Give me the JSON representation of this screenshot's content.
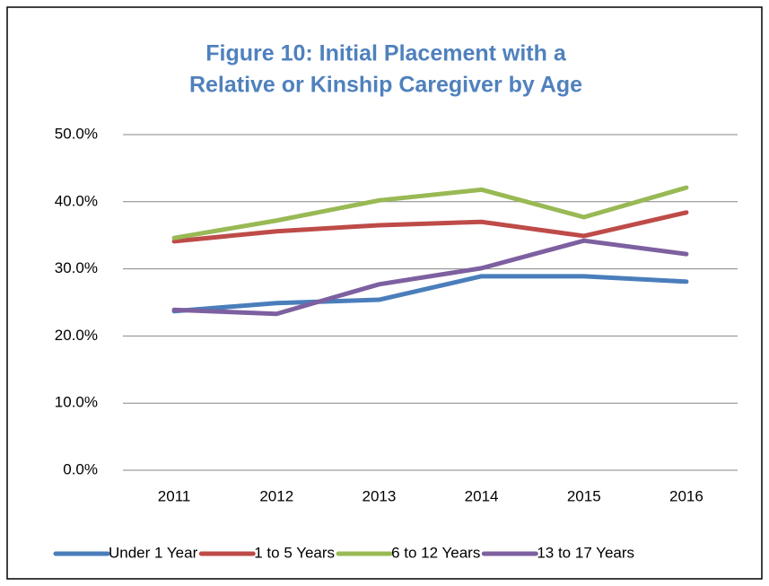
{
  "chart_data": {
    "type": "line",
    "title": [
      "Figure 10: Initial Placement with a",
      "Relative or Kinship Caregiver by Age"
    ],
    "categories": [
      "2011",
      "2012",
      "2013",
      "2014",
      "2015",
      "2016"
    ],
    "series": [
      {
        "name": "Under 1 Year",
        "color": "#4a7ebb",
        "values": [
          23.7,
          24.9,
          25.4,
          28.9,
          28.9,
          28.1
        ]
      },
      {
        "name": "1 to 5 Years",
        "color": "#be4b48",
        "values": [
          34.1,
          35.6,
          36.5,
          37.0,
          34.9,
          38.4
        ]
      },
      {
        "name": "6 to 12 Years",
        "color": "#98b954",
        "values": [
          34.6,
          37.2,
          40.2,
          41.8,
          37.7,
          42.1
        ]
      },
      {
        "name": "13 to 17 Years",
        "color": "#7d60a0",
        "values": [
          23.9,
          23.3,
          27.7,
          30.1,
          34.2,
          32.2
        ]
      }
    ],
    "ylim": [
      0,
      50
    ],
    "yticks": [
      {
        "value": 0,
        "label": "0.0%"
      },
      {
        "value": 10,
        "label": "10.0%"
      },
      {
        "value": 20,
        "label": "20.0%"
      },
      {
        "value": 30,
        "label": "30.0%"
      },
      {
        "value": 40,
        "label": "40.0%"
      },
      {
        "value": 50,
        "label": "50.0%"
      }
    ],
    "grid": true,
    "legend": "bottom"
  }
}
